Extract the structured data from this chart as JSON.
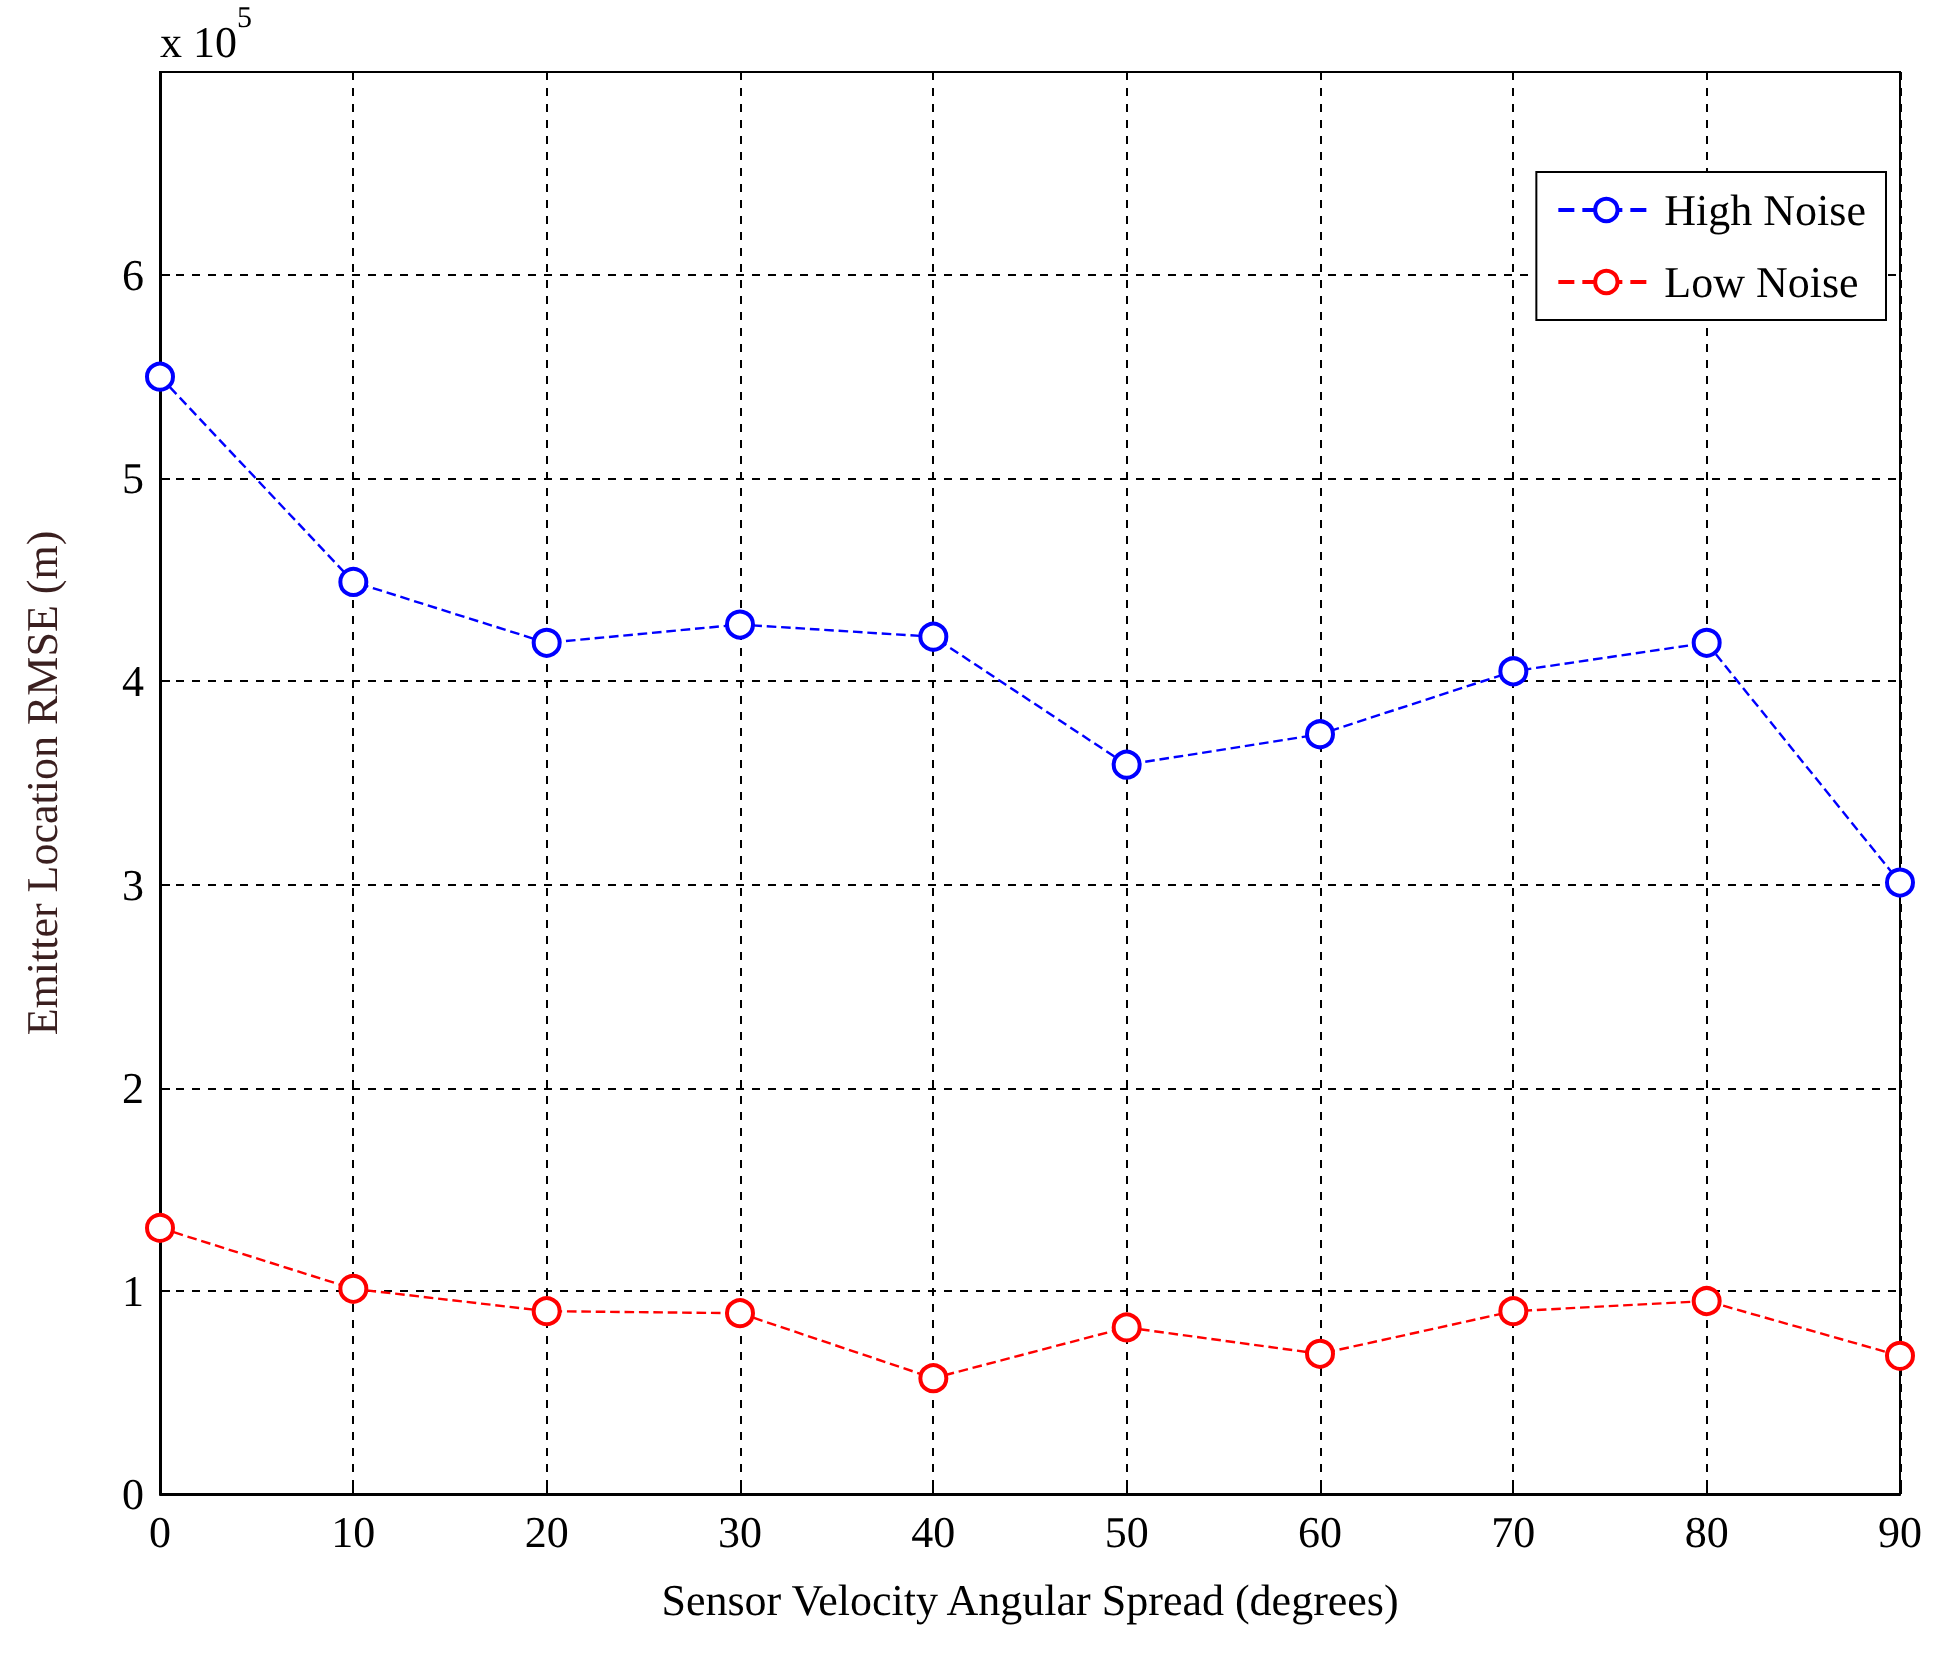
{
  "chart_data": {
    "type": "line",
    "xlabel": "Sensor Velocity Angular Spread (degrees)",
    "ylabel": "Emitter Location RMSE (m)",
    "annotations": [
      "x 10$^{5}$"
    ],
    "x": [
      0,
      10,
      20,
      30,
      40,
      50,
      60,
      70,
      80,
      90
    ],
    "series": [
      {
        "name": "High Noise",
        "color": "#0000ff",
        "values": [
          5.5,
          4.49,
          4.19,
          4.28,
          4.22,
          3.59,
          3.74,
          4.05,
          4.19,
          3.01
        ]
      },
      {
        "name": "Low Noise",
        "color": "#ff0000",
        "values": [
          1.31,
          1.01,
          0.9,
          0.89,
          0.57,
          0.82,
          0.69,
          0.9,
          0.95,
          0.68
        ]
      }
    ],
    "xlim": [
      0,
      90
    ],
    "xticks": [
      0,
      10,
      20,
      30,
      40,
      50,
      60,
      70,
      80,
      90
    ],
    "ylim": [
      0,
      7
    ],
    "yticks": [
      0,
      1,
      2,
      3,
      4,
      5,
      6
    ],
    "grid": true,
    "legend": "top right",
    "marker": "circle",
    "line_style": "dashed"
  }
}
